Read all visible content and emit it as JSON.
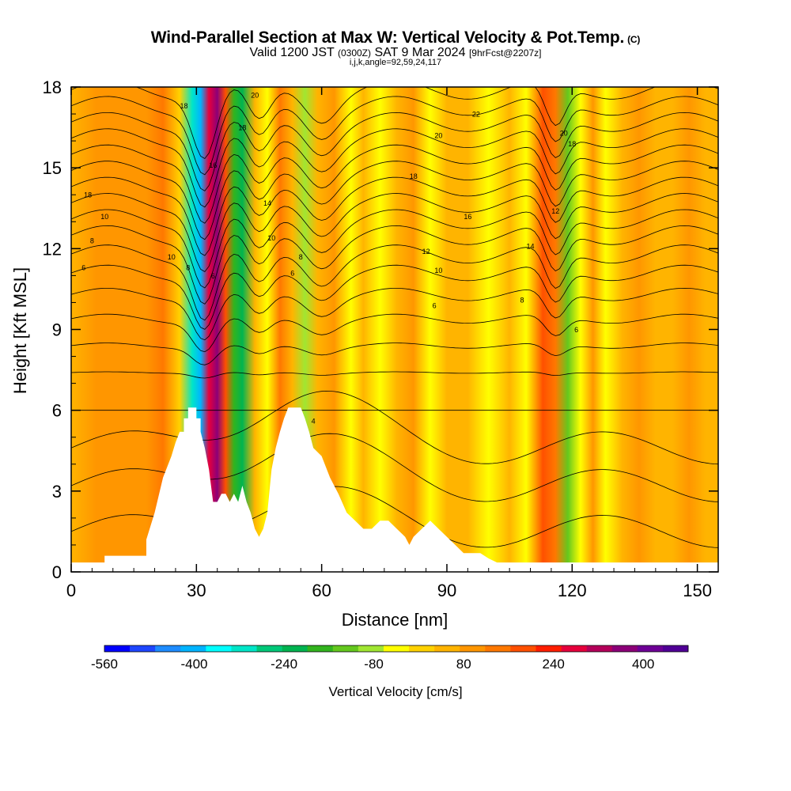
{
  "title": "Wind-Parallel Section at Max W: Vertical Velocity & Pot.Temp.",
  "title_mark": "(C)",
  "subtitle_pre": "Valid 1200 JST",
  "subtitle_z": "(0300Z)",
  "subtitle_mid": "SAT 9 Mar 2024",
  "subtitle_fcst": "[9hrFcst@2207z]",
  "params": "i,j,k,angle=92,59,24,117",
  "chart_data": {
    "type": "heatmap",
    "title": "Wind-Parallel Section at Max W: Vertical Velocity & Pot.Temp.",
    "xlabel": "Distance [nm]",
    "ylabel": "Height [Kft MSL]",
    "xlim": [
      0,
      155
    ],
    "ylim": [
      0,
      18
    ],
    "x_ticks": [
      0,
      30,
      60,
      90,
      120,
      150
    ],
    "y_ticks": [
      0,
      3,
      6,
      9,
      12,
      15,
      18
    ],
    "colorbar": {
      "label": "Vertical Velocity [cm/s]",
      "tick_values": [
        -560,
        -400,
        -240,
        -80,
        80,
        240,
        400
      ],
      "tick_labels": [
        "-560",
        "-400",
        "-240",
        "-80",
        "80",
        "240",
        "400"
      ],
      "colors": [
        "#0000ff",
        "#1e46ff",
        "#1e8cff",
        "#00b4ff",
        "#00ffff",
        "#00e6c8",
        "#00c878",
        "#00b450",
        "#32b41e",
        "#64c81e",
        "#a0e632",
        "#ffff00",
        "#ffd200",
        "#ffb400",
        "#ff9600",
        "#ff7800",
        "#ff5000",
        "#ff1e00",
        "#e6003c",
        "#b4005a",
        "#8c0078",
        "#6e0096",
        "#500096"
      ]
    },
    "contour_labels": [
      "4",
      "6",
      "8",
      "10",
      "12",
      "14",
      "16",
      "18",
      "20",
      "22"
    ],
    "terrain_profile": [
      [
        0,
        0.35
      ],
      [
        8,
        0.35
      ],
      [
        8,
        0.6
      ],
      [
        18,
        0.6
      ],
      [
        18,
        1.2
      ],
      [
        20,
        2.2
      ],
      [
        22,
        3.5
      ],
      [
        23,
        3.9
      ],
      [
        24,
        4.3
      ],
      [
        25,
        4.8
      ],
      [
        26,
        5.2
      ],
      [
        27,
        5.2
      ],
      [
        27,
        5.7
      ],
      [
        28,
        5.7
      ],
      [
        28,
        6.1
      ],
      [
        30,
        6.1
      ],
      [
        30,
        5.7
      ],
      [
        31,
        5.7
      ],
      [
        31,
        5.2
      ],
      [
        32,
        4.6
      ],
      [
        33,
        3.8
      ],
      [
        34,
        2.6
      ],
      [
        35,
        2.6
      ],
      [
        36,
        2.9
      ],
      [
        37,
        2.9
      ],
      [
        38,
        2.6
      ],
      [
        39,
        2.9
      ],
      [
        40,
        2.6
      ],
      [
        41,
        3.2
      ],
      [
        42,
        2.6
      ],
      [
        43,
        2.2
      ],
      [
        44,
        1.6
      ],
      [
        45,
        1.3
      ],
      [
        46,
        1.6
      ],
      [
        47,
        2.2
      ],
      [
        48,
        3.8
      ],
      [
        49,
        4.6
      ],
      [
        50,
        5.2
      ],
      [
        51,
        5.7
      ],
      [
        52,
        6.1
      ],
      [
        55,
        6.1
      ],
      [
        56,
        5.7
      ],
      [
        57,
        5.2
      ],
      [
        58,
        4.6
      ],
      [
        60,
        4.3
      ],
      [
        62,
        3.5
      ],
      [
        64,
        2.9
      ],
      [
        66,
        2.2
      ],
      [
        68,
        1.9
      ],
      [
        70,
        1.6
      ],
      [
        72,
        1.6
      ],
      [
        74,
        1.9
      ],
      [
        76,
        1.9
      ],
      [
        78,
        1.6
      ],
      [
        80,
        1.3
      ],
      [
        81,
        1.0
      ],
      [
        82,
        1.3
      ],
      [
        84,
        1.6
      ],
      [
        86,
        1.9
      ],
      [
        88,
        1.6
      ],
      [
        90,
        1.3
      ],
      [
        92,
        1.0
      ],
      [
        94,
        0.7
      ],
      [
        98,
        0.7
      ],
      [
        100,
        0.5
      ],
      [
        102,
        0.35
      ],
      [
        155,
        0.35
      ]
    ],
    "w_columns": [
      {
        "x": 0,
        "w": 60
      },
      {
        "x": 6,
        "w": 80
      },
      {
        "x": 12,
        "w": 110
      },
      {
        "x": 18,
        "w": 90
      },
      {
        "x": 22,
        "w": 150
      },
      {
        "x": 26,
        "w": 10
      },
      {
        "x": 29,
        "w": -330
      },
      {
        "x": 31,
        "w": -420
      },
      {
        "x": 33,
        "w": 260
      },
      {
        "x": 35,
        "w": 360
      },
      {
        "x": 37,
        "w": 200
      },
      {
        "x": 39,
        "w": -180
      },
      {
        "x": 41,
        "w": -230
      },
      {
        "x": 44,
        "w": 60
      },
      {
        "x": 47,
        "w": -40
      },
      {
        "x": 50,
        "w": 160
      },
      {
        "x": 53,
        "w": 60
      },
      {
        "x": 56,
        "w": -90
      },
      {
        "x": 59,
        "w": 30
      },
      {
        "x": 63,
        "w": 90
      },
      {
        "x": 67,
        "w": -30
      },
      {
        "x": 70,
        "w": 60
      },
      {
        "x": 74,
        "w": -60
      },
      {
        "x": 78,
        "w": 40
      },
      {
        "x": 82,
        "w": 90
      },
      {
        "x": 86,
        "w": -40
      },
      {
        "x": 90,
        "w": 30
      },
      {
        "x": 95,
        "w": 70
      },
      {
        "x": 100,
        "w": -30
      },
      {
        "x": 105,
        "w": 40
      },
      {
        "x": 109,
        "w": -20
      },
      {
        "x": 113,
        "w": 200
      },
      {
        "x": 116,
        "w": 120
      },
      {
        "x": 119,
        "w": -120
      },
      {
        "x": 122,
        "w": -40
      },
      {
        "x": 125,
        "w": 110
      },
      {
        "x": 128,
        "w": -30
      },
      {
        "x": 132,
        "w": 40
      },
      {
        "x": 136,
        "w": 90
      },
      {
        "x": 140,
        "w": 30
      },
      {
        "x": 144,
        "w": 70
      },
      {
        "x": 148,
        "w": 100
      },
      {
        "x": 152,
        "w": 60
      },
      {
        "x": 155,
        "w": 40
      }
    ]
  }
}
